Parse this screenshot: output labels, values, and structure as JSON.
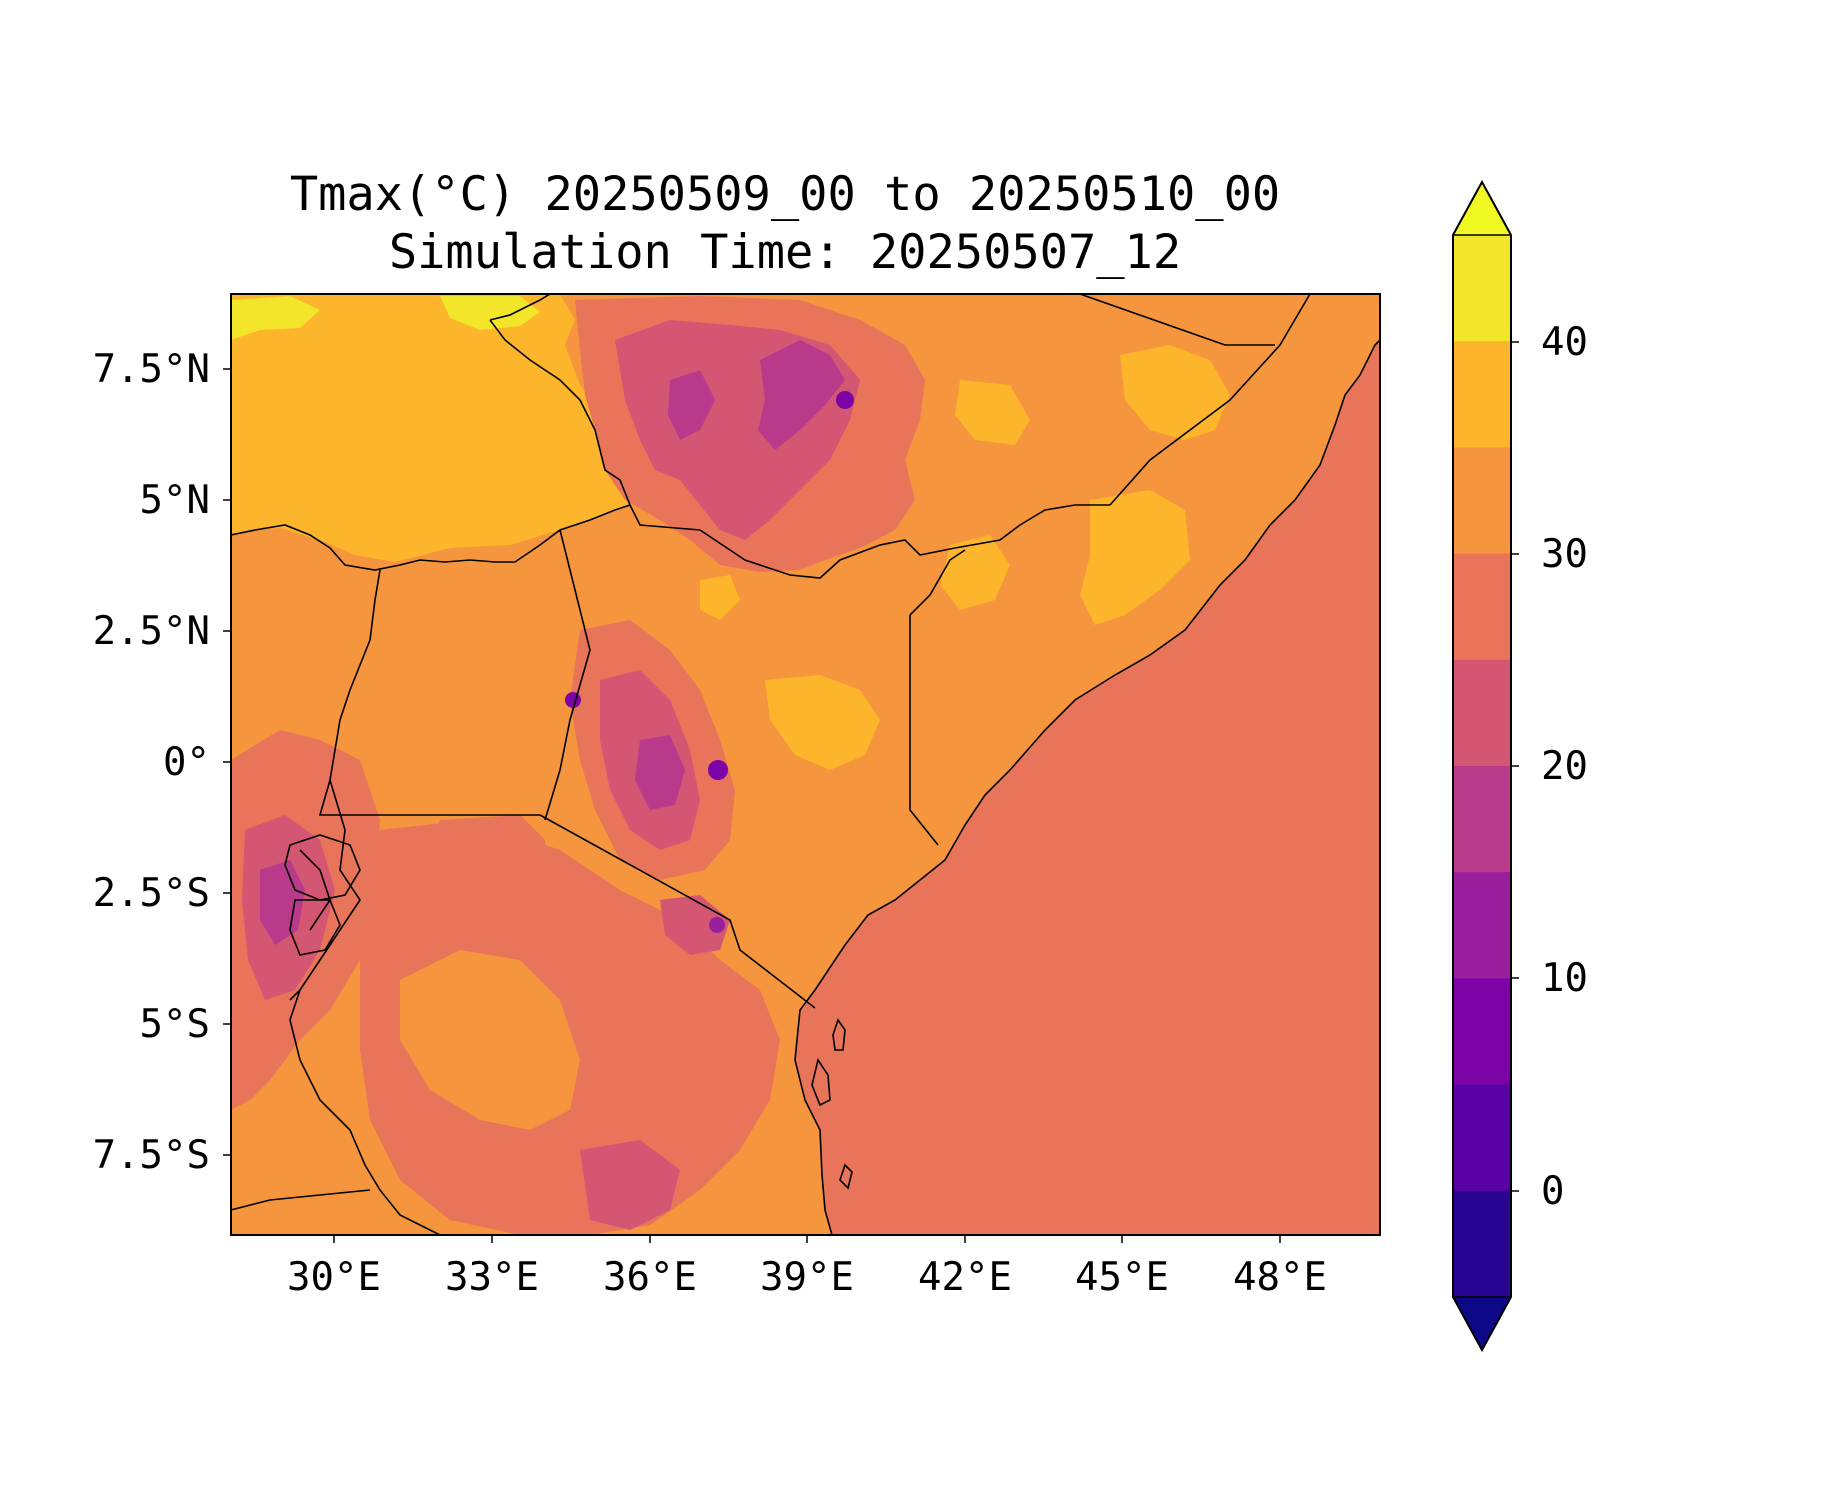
{
  "title": {
    "line1": "Tmax(°C) 20250509_00 to 20250510_00",
    "line2": "Simulation Time: 20250507_12"
  },
  "map": {
    "x_ticks": [
      "30°E",
      "33°E",
      "36°E",
      "39°E",
      "42°E",
      "45°E",
      "48°E"
    ],
    "y_ticks": [
      "7.5°N",
      "5°N",
      "2.5°N",
      "0°",
      "2.5°S",
      "5°S",
      "7.5°S"
    ],
    "ocean_color": "#e8745a",
    "land_color": "#f5953d"
  },
  "colorbar": {
    "tick_labels": [
      "40",
      "30",
      "20",
      "10",
      "0"
    ],
    "extend": "both",
    "levels": [
      {
        "value": 40,
        "color": "#f2e52a"
      },
      {
        "value": 35,
        "color": "#fdb52c"
      },
      {
        "value": 30,
        "color": "#f5953d"
      },
      {
        "value": 25,
        "color": "#e8745a"
      },
      {
        "value": 20,
        "color": "#d35672"
      },
      {
        "value": 15,
        "color": "#b93a8b"
      },
      {
        "value": 10,
        "color": "#9a1f9c"
      },
      {
        "value": 5,
        "color": "#7c04a6"
      },
      {
        "value": 0,
        "color": "#5a01a5"
      },
      {
        "value": -5,
        "color": "#280590"
      }
    ],
    "over_color": "#f0f921",
    "under_color": "#0d0887"
  }
}
